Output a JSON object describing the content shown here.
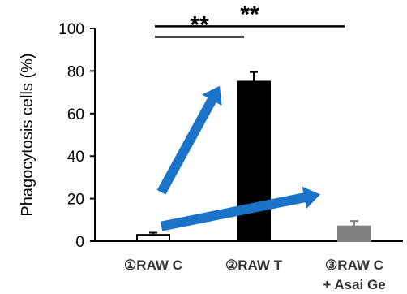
{
  "chart_data": {
    "type": "bar",
    "title": "",
    "ylabel": "Phagocytosis cells (%)",
    "xlabel": "",
    "ylim": [
      0,
      100
    ],
    "yticks": [
      0,
      20,
      40,
      60,
      80,
      100
    ],
    "ytick_labels": [
      "0",
      "20",
      "40",
      "60",
      "80",
      "100"
    ],
    "categories": [
      {
        "lines": [
          "①RAW C"
        ]
      },
      {
        "lines": [
          "②RAW T"
        ]
      },
      {
        "lines": [
          "③RAW C",
          "+ Asai Ge"
        ]
      }
    ],
    "values": [
      3,
      75,
      7
    ],
    "errors": [
      1,
      4.5,
      2.5
    ],
    "bar_fill": [
      "#ffffff",
      "#000000",
      "#808080"
    ],
    "bar_stroke": [
      "#000000",
      "#000000",
      "#808080"
    ],
    "significance": [
      {
        "from": 0,
        "to": 1,
        "level": 96,
        "label": "**"
      },
      {
        "from": 0,
        "to": 2,
        "level": 101,
        "label": "**"
      }
    ],
    "arrows": [
      {
        "from_value": 23,
        "to_value": 73,
        "from_cat": 0,
        "to_cat": 1
      },
      {
        "from_value": 7,
        "to_value": 22,
        "from_cat": 0,
        "to_cat": 2
      }
    ],
    "arrow_color": "#1a73c8",
    "grid": false,
    "legend": "none"
  }
}
